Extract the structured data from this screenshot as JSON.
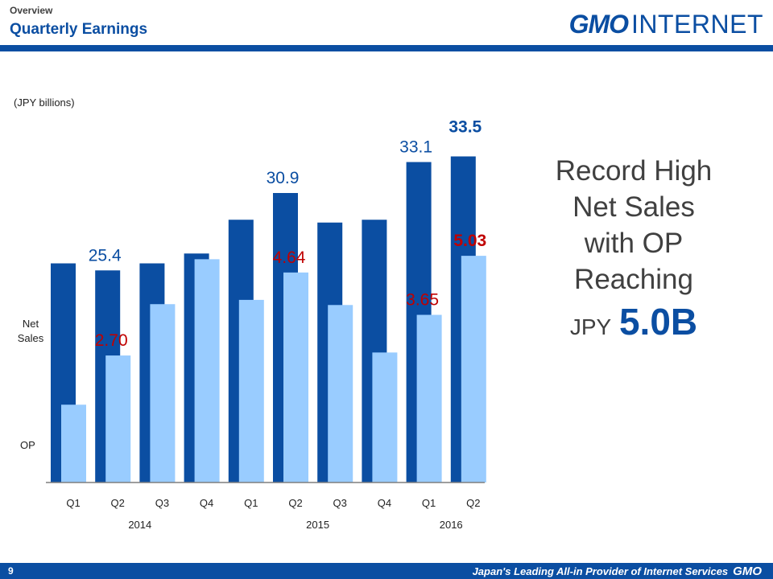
{
  "header": {
    "section": "Overview",
    "title": "Quarterly Earnings",
    "logo_bold": "GMO",
    "logo_text": "INTERNET"
  },
  "unit_label": "(JPY billions)",
  "row_labels": {
    "net_sales": "Net Sales",
    "op": "OP"
  },
  "headline": {
    "lines": [
      "Record High",
      "Net Sales",
      "with OP",
      "Reaching"
    ],
    "currency": "JPY",
    "amount": "5.0B"
  },
  "footer": {
    "page_number": "9",
    "tagline": "Japan's Leading All-in Provider of Internet Services",
    "brand": "GMO"
  },
  "colors": {
    "net_sales": "#0b4ea2",
    "op": "#99ccff",
    "op_label": "#c00000",
    "brand": "#0b4ea2"
  },
  "chart_data": {
    "type": "bar",
    "categories": [
      "Q1",
      "Q2",
      "Q3",
      "Q4",
      "Q1",
      "Q2",
      "Q3",
      "Q4",
      "Q1",
      "Q2"
    ],
    "years": [
      {
        "label": "2014",
        "span": [
          0,
          3
        ]
      },
      {
        "label": "2015",
        "span": [
          4,
          7
        ]
      },
      {
        "label": "2016",
        "span": [
          8,
          9
        ]
      }
    ],
    "series": [
      {
        "name": "Net Sales",
        "values": [
          25.9,
          25.4,
          25.9,
          26.6,
          29.0,
          30.9,
          28.8,
          29.0,
          33.1,
          33.5
        ],
        "labels": [
          null,
          "25.4",
          null,
          null,
          null,
          "30.9",
          null,
          null,
          "33.1",
          "33.5"
        ],
        "bold_labels": [
          9
        ]
      },
      {
        "name": "OP",
        "values": [
          1.55,
          2.7,
          3.9,
          4.95,
          4.0,
          4.64,
          3.88,
          2.77,
          3.65,
          5.03
        ],
        "labels": [
          null,
          "2.70",
          null,
          null,
          null,
          "4.64",
          null,
          null,
          "3.65",
          "5.03"
        ],
        "bold_labels": [
          9
        ]
      }
    ]
  }
}
